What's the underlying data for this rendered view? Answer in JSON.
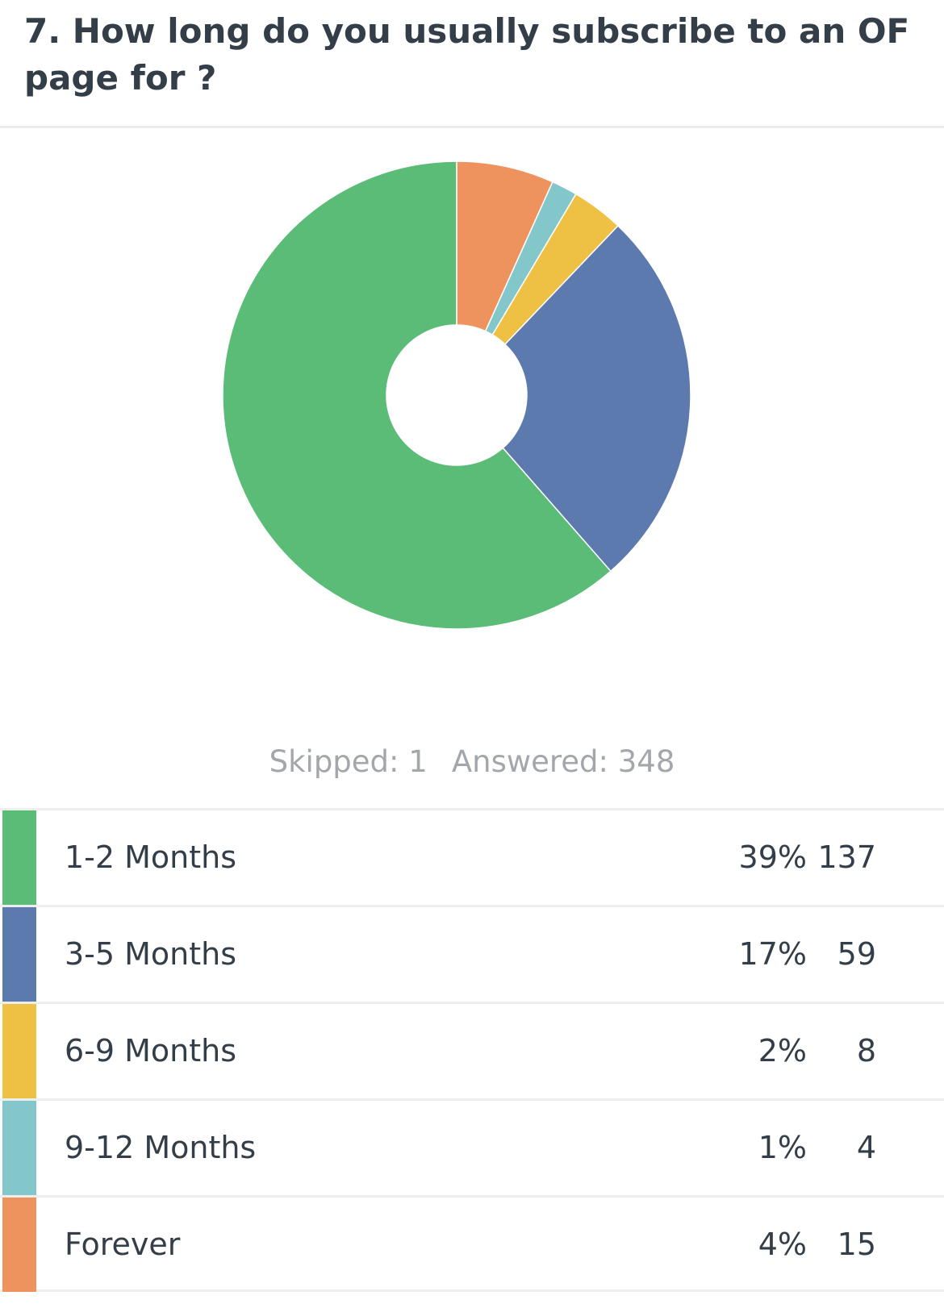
{
  "question": {
    "title": "7. How long do you usually subscribe to an OF page for ?"
  },
  "summary": {
    "skipped_label": "Skipped: 1",
    "answered_label": "Answered: 348"
  },
  "chart_data": {
    "type": "pie",
    "title": "7. How long do you usually subscribe to an OF page for ?",
    "categories": [
      "1-2 Months",
      "3-5 Months",
      "6-9 Months",
      "9-12 Months",
      "Forever"
    ],
    "values": [
      137,
      59,
      8,
      4,
      15
    ],
    "percentages": [
      "39%",
      "17%",
      "2%",
      "1%",
      "4%"
    ],
    "colors": [
      "#5bbc77",
      "#5d7aaf",
      "#eec043",
      "#83c7cb",
      "#ef935e"
    ],
    "legend": "bottom"
  },
  "table": {
    "rows": [
      {
        "label": "1-2 Months",
        "percent": "39%",
        "count": "137",
        "color": "#5bbc77"
      },
      {
        "label": "3-5 Months",
        "percent": "17%",
        "count": "59",
        "color": "#5d7aaf"
      },
      {
        "label": "6-9 Months",
        "percent": "2%",
        "count": "8",
        "color": "#eec043"
      },
      {
        "label": "9-12 Months",
        "percent": "1%",
        "count": "4",
        "color": "#83c7cb"
      },
      {
        "label": "Forever",
        "percent": "4%",
        "count": "15",
        "color": "#ef935e"
      }
    ]
  }
}
